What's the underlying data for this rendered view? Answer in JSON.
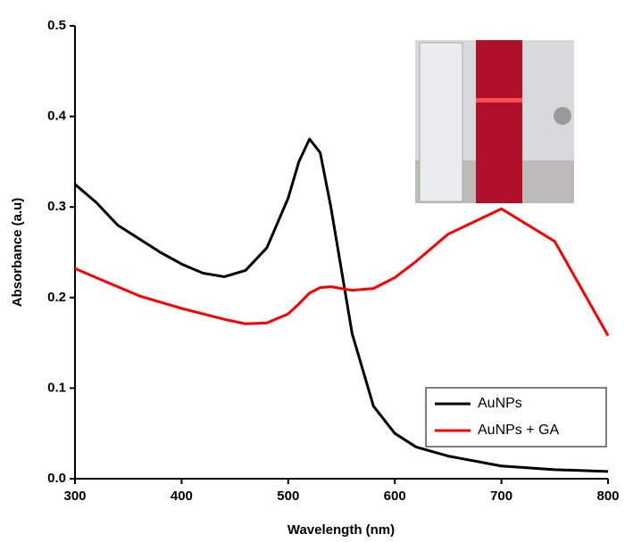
{
  "chart_data": {
    "type": "line",
    "x_label": "Wavelength (nm)",
    "y_label": "Absorbance (a.u)",
    "xlim": [
      300,
      800
    ],
    "xticks": [
      300,
      400,
      500,
      600,
      700,
      800
    ],
    "ylim": [
      0,
      0.5
    ],
    "yticks": [
      {
        "value": 0,
        "label": "0.0"
      },
      0.1,
      0.2,
      0.3,
      0.4,
      0.5
    ],
    "legend": "lower right",
    "x": [
      300,
      320,
      340,
      360,
      380,
      400,
      420,
      440,
      460,
      480,
      500,
      510,
      520,
      530,
      540,
      550,
      560,
      580,
      600,
      620,
      650,
      700,
      750,
      800
    ],
    "series": [
      {
        "name": "AuNPs",
        "color": "#000000",
        "values": [
          0.325,
          0.305,
          0.28,
          0.265,
          0.25,
          0.237,
          0.227,
          0.223,
          0.23,
          0.255,
          0.31,
          0.35,
          0.375,
          0.36,
          0.3,
          0.23,
          0.16,
          0.08,
          0.05,
          0.035,
          0.025,
          0.014,
          0.01,
          0.008
        ]
      },
      {
        "name": "AuNPs + GA",
        "color": "#ff0000",
        "values": [
          0.232,
          0.222,
          0.212,
          0.202,
          0.195,
          0.188,
          0.182,
          0.176,
          0.171,
          0.172,
          0.182,
          0.193,
          0.205,
          0.211,
          0.212,
          0.21,
          0.208,
          0.21,
          0.222,
          0.24,
          0.27,
          0.298,
          0.262,
          0.158
        ]
      }
    ]
  }
}
